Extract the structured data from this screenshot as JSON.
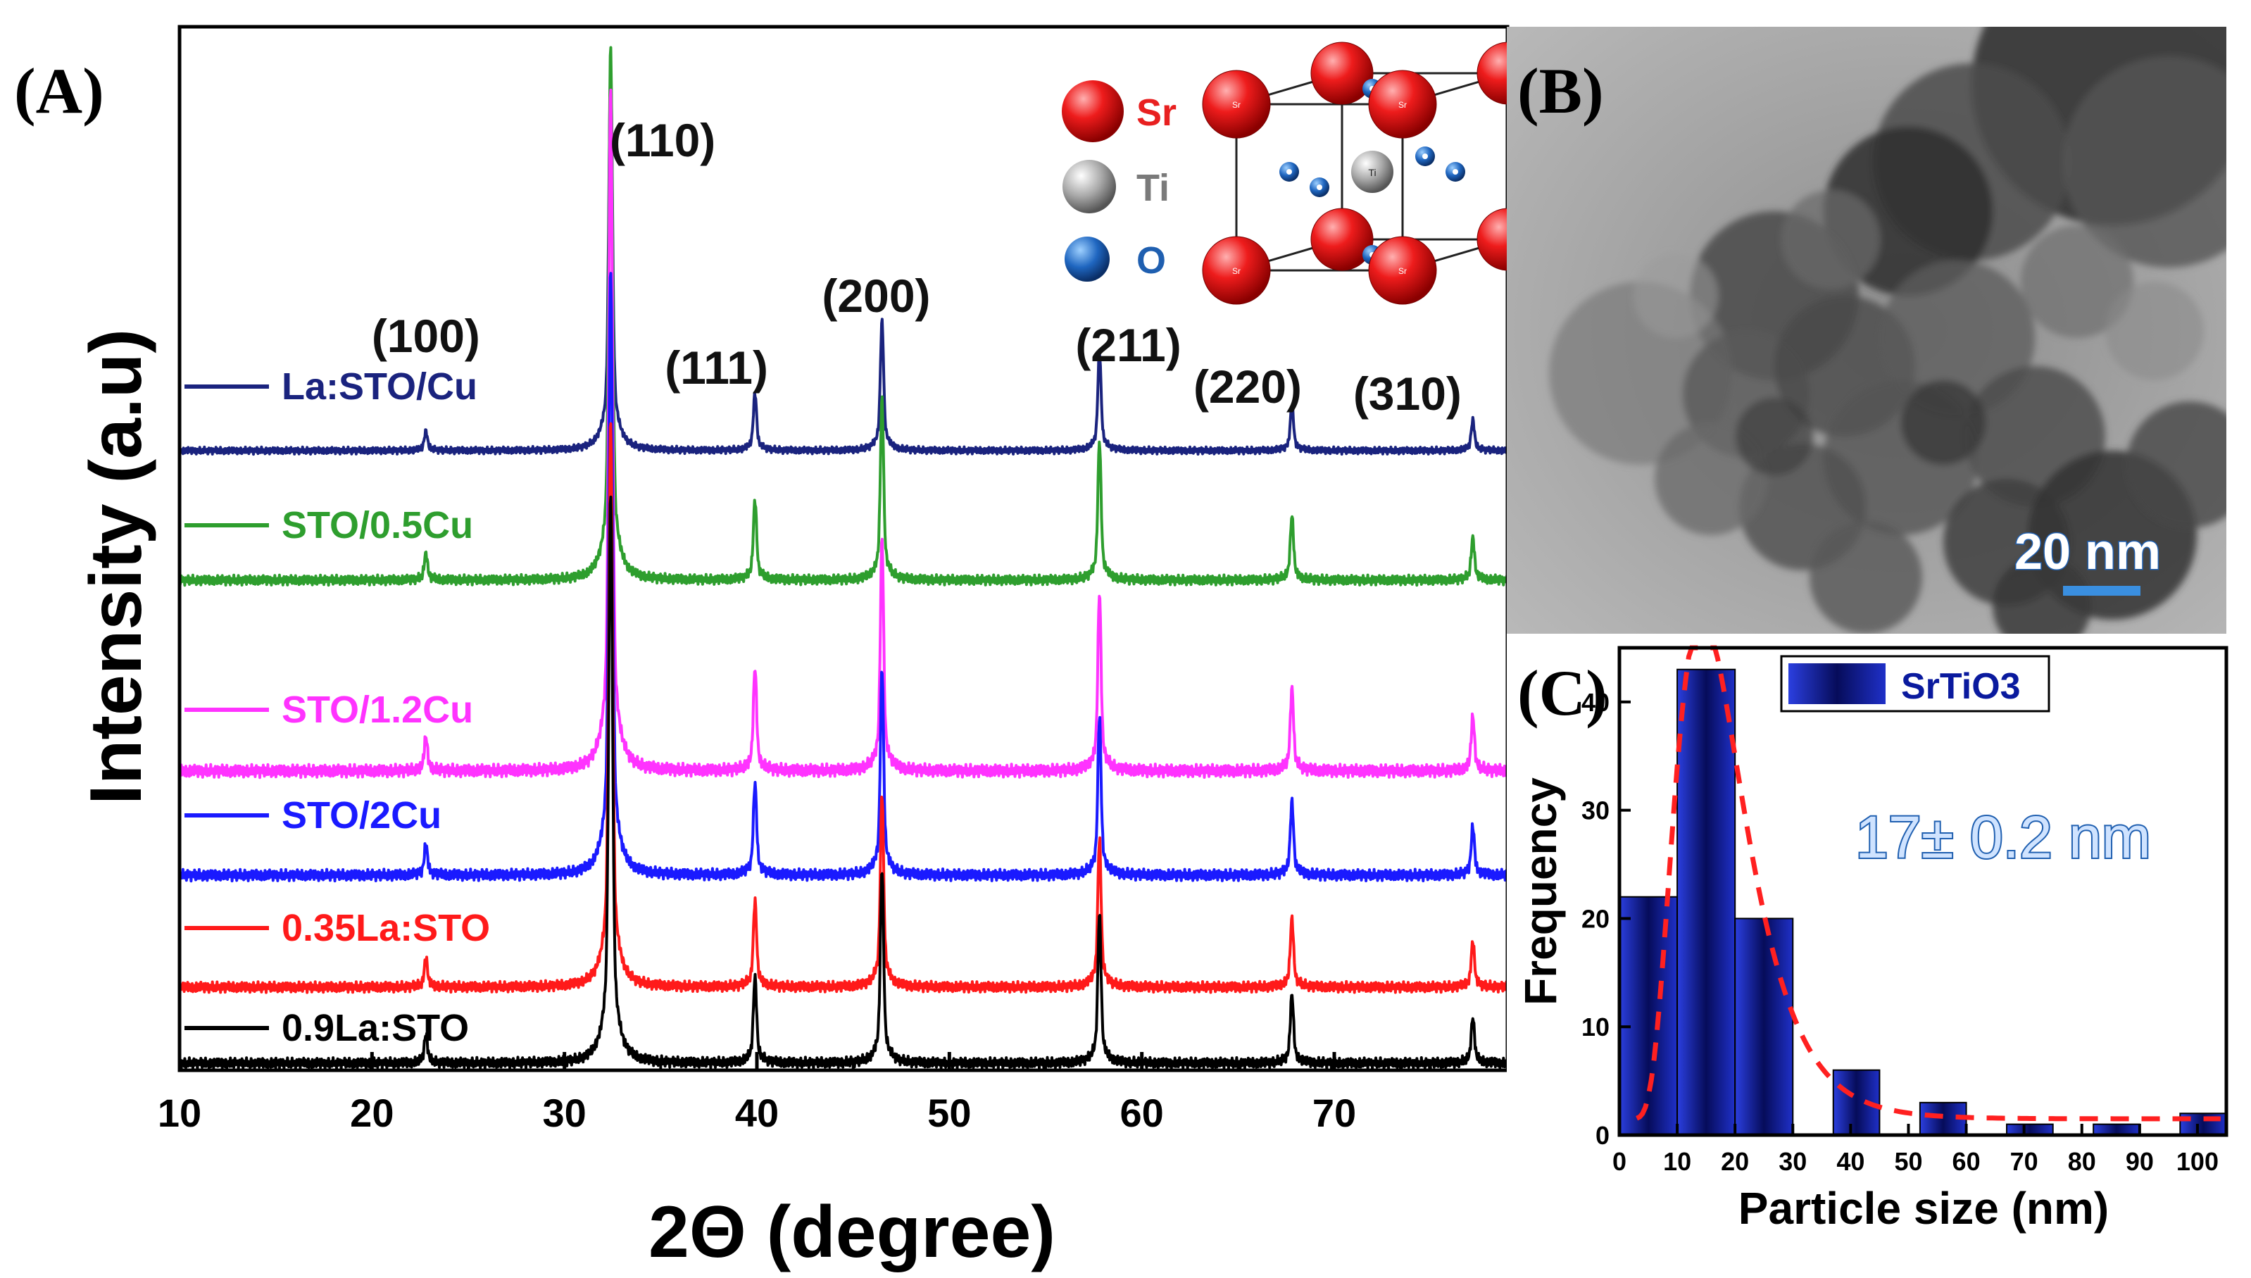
{
  "figure": {
    "panel_labels": {
      "a": "(A)",
      "b": "(B)",
      "c": "(C)"
    },
    "inset": {
      "atoms": [
        {
          "symbol": "Sr",
          "color": "#e82020"
        },
        {
          "symbol": "Ti",
          "color": "#7a7a7a"
        },
        {
          "symbol": "O",
          "color": "#1f5fb0"
        }
      ],
      "center_atom": "Ti",
      "corner_atom": "Sr"
    },
    "tem": {
      "scale_bar": "20 nm"
    }
  },
  "chart_data": [
    {
      "id": "A",
      "type": "line",
      "title": "",
      "xlabel": "2Θ (degree)",
      "ylabel": "Intensity (a.u)",
      "xlim": [
        10,
        79
      ],
      "xticks": [
        10,
        20,
        30,
        40,
        50,
        60,
        70
      ],
      "peaks": [
        {
          "label": "(100)",
          "x": 22.8,
          "rel_height": 0.05
        },
        {
          "label": "(110)",
          "x": 32.4,
          "rel_height": 1.0
        },
        {
          "label": "(111)",
          "x": 39.9,
          "rel_height": 0.15
        },
        {
          "label": "(200)",
          "x": 46.5,
          "rel_height": 0.34
        },
        {
          "label": "(211)",
          "x": 57.8,
          "rel_height": 0.26
        },
        {
          "label": "(220)",
          "x": 67.8,
          "rel_height": 0.12
        },
        {
          "label": "(310)",
          "x": 77.2,
          "rel_height": 0.08
        }
      ],
      "series": [
        {
          "name": "La:STO/Cu",
          "color": "#1a237e",
          "offset": 5
        },
        {
          "name": "STO/0.5Cu",
          "color": "#2e9e2e",
          "offset": 4
        },
        {
          "name": "STO/1.2Cu",
          "color": "#ff33ff",
          "offset": 3
        },
        {
          "name": "STO/2Cu",
          "color": "#1a1aff",
          "offset": 2
        },
        {
          "name": "0.35La:STO",
          "color": "#ff1a1a",
          "offset": 1
        },
        {
          "name": "0.9La:STO",
          "color": "#000000",
          "offset": 0
        }
      ]
    },
    {
      "id": "C",
      "type": "bar",
      "title": "",
      "xlabel": "Particle size (nm)",
      "ylabel": "Frequency",
      "xlim": [
        0,
        105
      ],
      "ylim": [
        0,
        45
      ],
      "xticks": [
        0,
        10,
        20,
        30,
        40,
        50,
        60,
        70,
        80,
        90,
        100
      ],
      "yticks": [
        0,
        10,
        20,
        30,
        40
      ],
      "series": [
        {
          "name": "SrTiO3",
          "color": "#0a1a9e",
          "bins": [
            {
              "x0": 0,
              "x1": 10,
              "value": 22
            },
            {
              "x0": 10,
              "x1": 20,
              "value": 43
            },
            {
              "x0": 20,
              "x1": 30,
              "value": 20
            },
            {
              "x0": 37,
              "x1": 45,
              "value": 6
            },
            {
              "x0": 52,
              "x1": 60,
              "value": 3
            },
            {
              "x0": 67,
              "x1": 75,
              "value": 1
            },
            {
              "x0": 82,
              "x1": 90,
              "value": 1
            },
            {
              "x0": 97,
              "x1": 105,
              "value": 2
            }
          ]
        }
      ],
      "fit_color": "#ff2020",
      "annotation": "17± 0.2 nm"
    }
  ]
}
